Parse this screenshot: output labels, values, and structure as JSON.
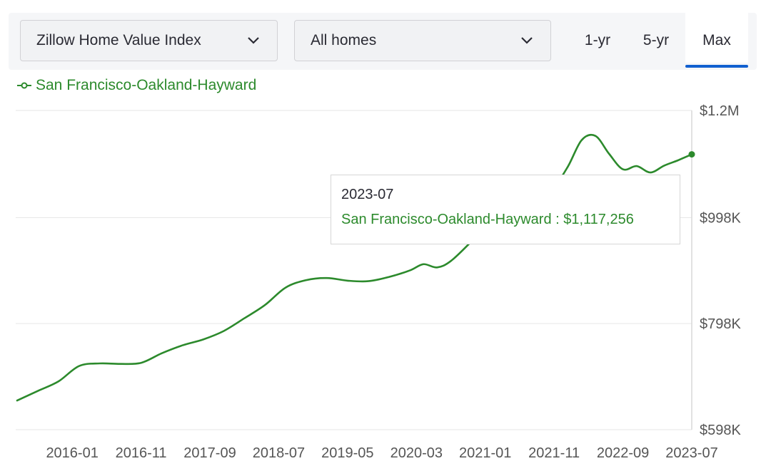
{
  "toolbar": {
    "metric_dropdown": "Zillow Home Value Index",
    "homes_dropdown": "All homes",
    "ranges": [
      "1-yr",
      "5-yr",
      "Max"
    ],
    "selected_range": "Max"
  },
  "tooltip": {
    "date": "2023-07",
    "series": "San Francisco-Oakland-Hayward",
    "separator": " : ",
    "value": "$1,117,256"
  },
  "colors": {
    "series": "#2c8a2c",
    "accent": "#1160d0",
    "grid": "#e6e6e6"
  },
  "chart_data": {
    "type": "line",
    "title": "",
    "xlabel": "",
    "ylabel": "",
    "legend_position": "top-left",
    "grid": true,
    "x_ticks": [
      "2016-01",
      "2016-11",
      "2017-09",
      "2018-07",
      "2019-05",
      "2020-03",
      "2021-01",
      "2021-11",
      "2022-09",
      "2023-07"
    ],
    "y_ticks": [
      {
        "label": "$598K",
        "value": 598000
      },
      {
        "label": "$798K",
        "value": 798000
      },
      {
        "label": "$998K",
        "value": 998000
      },
      {
        "label": "$1.2M",
        "value": 1200000
      }
    ],
    "ylim": [
      598000,
      1200000
    ],
    "series": [
      {
        "name": "San Francisco-Oakland-Hayward",
        "x": [
          "2015-05",
          "2015-08",
          "2015-11",
          "2016-02",
          "2016-05",
          "2016-08",
          "2016-11",
          "2017-02",
          "2017-05",
          "2017-08",
          "2017-11",
          "2018-02",
          "2018-05",
          "2018-08",
          "2018-11",
          "2019-02",
          "2019-05",
          "2019-08",
          "2019-11",
          "2020-02",
          "2020-04",
          "2020-06",
          "2020-08",
          "2020-11",
          "2021-02",
          "2021-05",
          "2021-08",
          "2021-11",
          "2022-01",
          "2022-03",
          "2022-05",
          "2022-07",
          "2022-09",
          "2022-11",
          "2023-01",
          "2023-03",
          "2023-05",
          "2023-07"
        ],
        "values": [
          653000,
          671000,
          689000,
          718000,
          723000,
          722000,
          724000,
          742000,
          757000,
          768000,
          784000,
          808000,
          833000,
          866000,
          880000,
          884000,
          879000,
          878000,
          886000,
          898000,
          910000,
          904000,
          916000,
          953000,
          993000,
          1016000,
          1036000,
          1058000,
          1094000,
          1144000,
          1152000,
          1118000,
          1089000,
          1095000,
          1083000,
          1096000,
          1106000,
          1117256
        ]
      }
    ]
  }
}
